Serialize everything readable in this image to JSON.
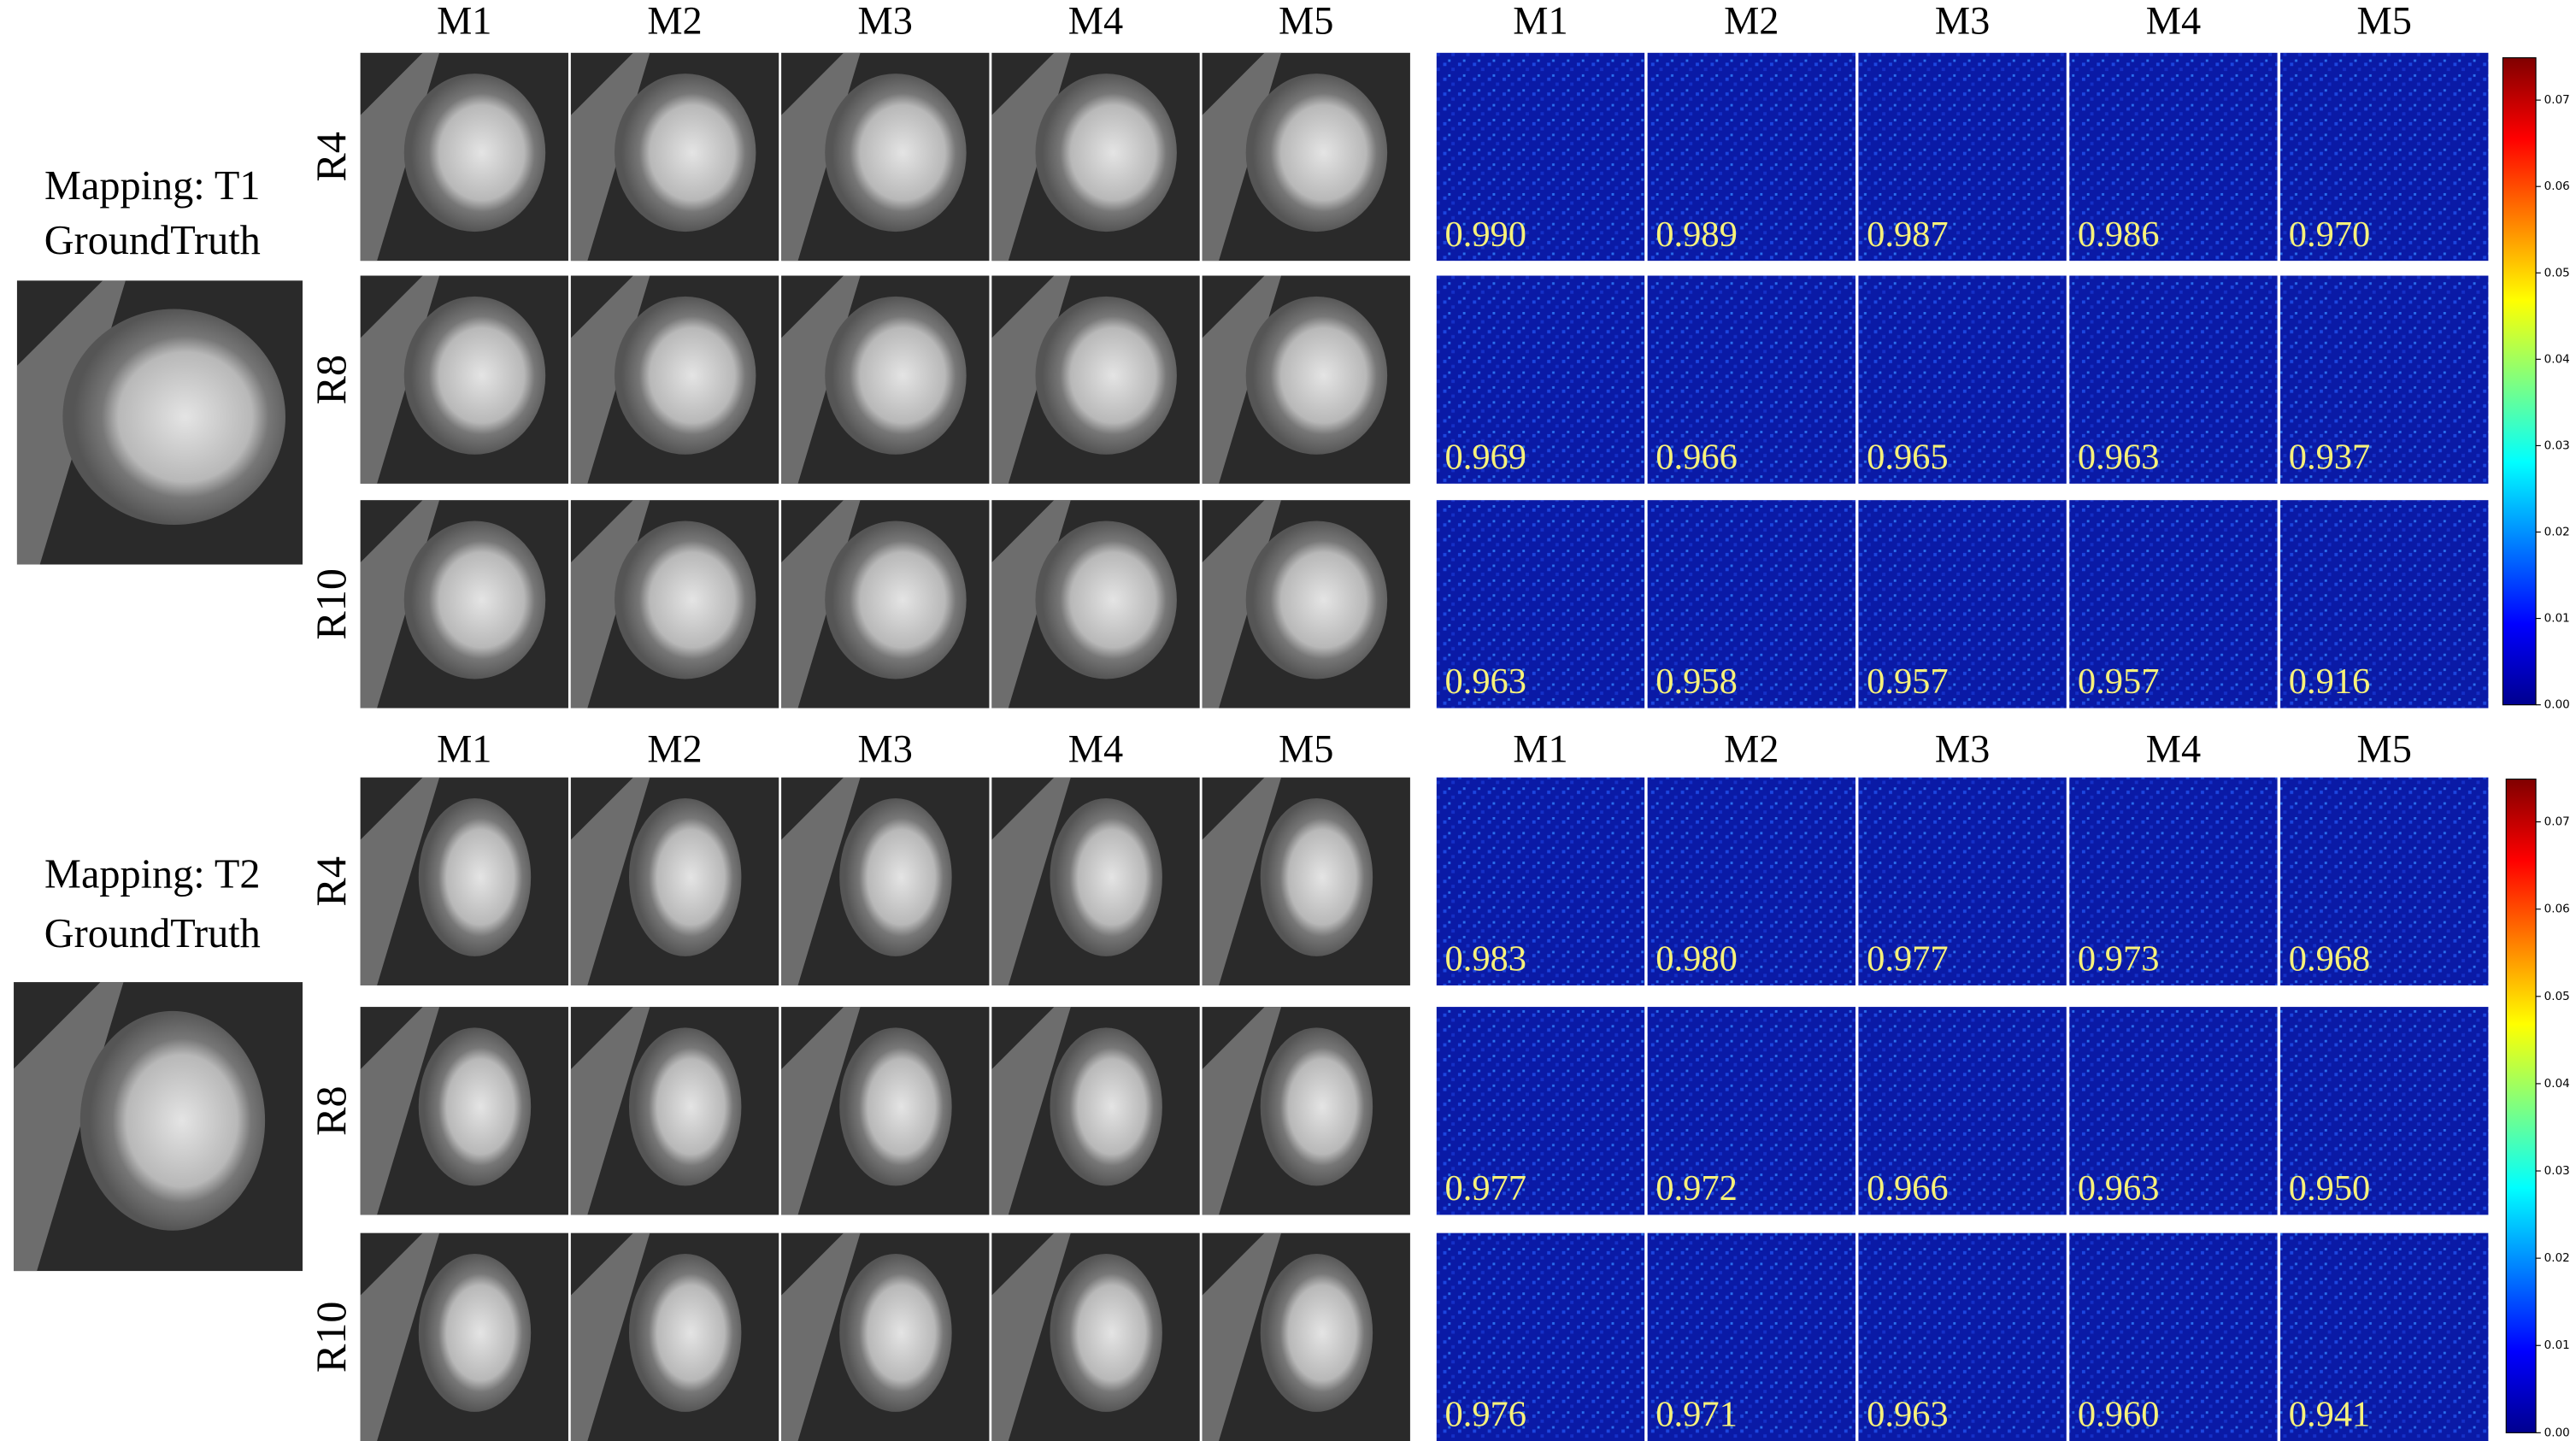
{
  "panels": [
    {
      "title_lines": [
        "Mapping: T1",
        "GroundTruth"
      ],
      "recon_headers": [
        "M1",
        "M2",
        "M3",
        "M4",
        "M5"
      ],
      "error_headers": [
        "M1",
        "M2",
        "M3",
        "M4",
        "M5"
      ],
      "rows": [
        {
          "label": "R4",
          "scores": [
            "0.990",
            "0.989",
            "0.987",
            "0.986",
            "0.970"
          ]
        },
        {
          "label": "R8",
          "scores": [
            "0.969",
            "0.966",
            "0.965",
            "0.963",
            "0.937"
          ]
        },
        {
          "label": "R10",
          "scores": [
            "0.963",
            "0.958",
            "0.957",
            "0.957",
            "0.916"
          ]
        }
      ],
      "colorbar_ticks": [
        "0.00",
        "0.01",
        "0.02",
        "0.03",
        "0.04",
        "0.05",
        "0.06",
        "0.07"
      ]
    },
    {
      "title_lines": [
        "Mapping: T2",
        "GroundTruth"
      ],
      "recon_headers": [
        "M1",
        "M2",
        "M3",
        "M4",
        "M5"
      ],
      "error_headers": [
        "M1",
        "M2",
        "M3",
        "M4",
        "M5"
      ],
      "rows": [
        {
          "label": "R4",
          "scores": [
            "0.983",
            "0.980",
            "0.977",
            "0.973",
            "0.968"
          ]
        },
        {
          "label": "R8",
          "scores": [
            "0.977",
            "0.972",
            "0.966",
            "0.963",
            "0.950"
          ]
        },
        {
          "label": "R10",
          "scores": [
            "0.976",
            "0.971",
            "0.963",
            "0.960",
            "0.941"
          ]
        }
      ],
      "colorbar_ticks": [
        "0.00",
        "0.01",
        "0.02",
        "0.03",
        "0.04",
        "0.05",
        "0.06",
        "0.07"
      ]
    }
  ]
}
